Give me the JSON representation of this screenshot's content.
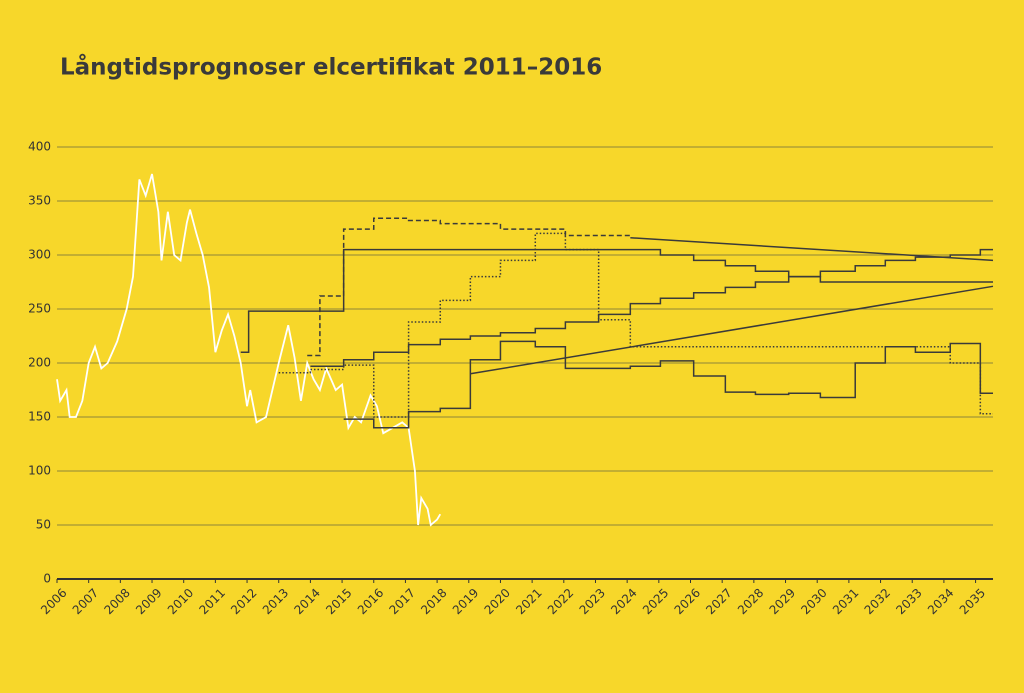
{
  "chart_data": {
    "type": "line",
    "title": "Långtidsprognoser elcertifikat 2011–2016",
    "xlim": [
      2006,
      2035.55
    ],
    "xticks": [
      2006,
      2007,
      2008,
      2009,
      2010,
      2011,
      2012,
      2013,
      2014,
      2015,
      2016,
      2017,
      2018,
      2019,
      2020,
      2021,
      2022,
      2023,
      2024,
      2025,
      2026,
      2027,
      2028,
      2029,
      2030,
      2031,
      2032,
      2033,
      2034,
      2035
    ],
    "ylim": [
      0,
      400
    ],
    "yticks": [
      0,
      50,
      100,
      150,
      200,
      250,
      300,
      350,
      400
    ],
    "grid": true,
    "background": "#f7d72a",
    "series": [
      {
        "color": "#ffffff",
        "dash": "solid",
        "step": false,
        "x": [
          2006.0,
          2006.1,
          2006.3,
          2006.4,
          2006.6,
          2006.8,
          2007.0,
          2007.2,
          2007.4,
          2007.6,
          2007.9,
          2008.2,
          2008.4,
          2008.6,
          2008.8,
          2009.0,
          2009.2,
          2009.3,
          2009.5,
          2009.7,
          2009.9,
          2010.1,
          2010.2,
          2010.4,
          2010.6,
          2010.8,
          2011.0,
          2011.2,
          2011.4,
          2011.6,
          2011.8,
          2012.0,
          2012.1,
          2012.3,
          2012.6,
          2012.8,
          2013.0,
          2013.3,
          2013.5,
          2013.7,
          2013.9,
          2014.1,
          2014.3,
          2014.5,
          2014.8,
          2015.0,
          2015.2,
          2015.4,
          2015.6,
          2015.9,
          2016.1,
          2016.3,
          2016.6,
          2016.9,
          2017.1,
          2017.3,
          2017.4,
          2017.5,
          2017.7,
          2017.8,
          2018.0,
          2018.1
        ],
        "values": [
          185,
          165,
          175,
          150,
          150,
          165,
          200,
          215,
          195,
          200,
          220,
          250,
          280,
          370,
          355,
          375,
          340,
          295,
          340,
          300,
          295,
          330,
          342,
          320,
          300,
          270,
          210,
          230,
          245,
          225,
          200,
          160,
          175,
          145,
          150,
          175,
          200,
          235,
          205,
          165,
          200,
          185,
          175,
          195,
          175,
          180,
          140,
          150,
          145,
          170,
          160,
          135,
          140,
          145,
          140,
          100,
          50,
          75,
          65,
          50,
          55,
          60
        ]
      },
      {
        "color": "#3a3a3a",
        "dash": "solid",
        "step": true,
        "x": [
          2011.8,
          2012.05,
          2015.05,
          2025.05,
          2026.1,
          2027.1,
          2028.05,
          2029.1,
          2030.1,
          2035.55
        ],
        "values": [
          210,
          248,
          305,
          300,
          295,
          290,
          285,
          280,
          275,
          275
        ]
      },
      {
        "color": "#3a3a3a",
        "dash": "dashed",
        "step": true,
        "x": [
          2013.9,
          2014.3,
          2015.05,
          2016.0,
          2017.1,
          2018.1,
          2020.0,
          2021.1,
          2022.05,
          2024.1
        ],
        "values": [
          207,
          262,
          324,
          334,
          332,
          329,
          324,
          324,
          318,
          316
        ]
      },
      {
        "color": "#3a3a3a",
        "dash": "solid",
        "step": false,
        "x": [
          2024.1,
          2035.55
        ],
        "values": [
          316,
          295
        ]
      },
      {
        "color": "#3a3a3a",
        "dash": "dotted",
        "step": true,
        "x": [
          2013.0,
          2014.0,
          2015.05,
          2016.0,
          2017.1,
          2018.1,
          2019.05,
          2020.0,
          2021.1,
          2022.05,
          2023.1,
          2024.1,
          2034.2,
          2035.15,
          2035.55
        ],
        "values": [
          191,
          194,
          198,
          150,
          238,
          258,
          280,
          295,
          320,
          305,
          240,
          215,
          200,
          153,
          153
        ]
      },
      {
        "color": "#3a3a3a",
        "dash": "solid",
        "step": true,
        "x": [
          2014.0,
          2015.05,
          2016.0,
          2017.1,
          2018.1,
          2019.05,
          2020.0,
          2021.1,
          2022.05,
          2023.1,
          2024.1,
          2025.05,
          2026.1,
          2027.1,
          2028.05,
          2029.1,
          2030.1,
          2031.2,
          2032.15,
          2033.1,
          2034.2,
          2035.15,
          2035.55
        ],
        "values": [
          197,
          203,
          210,
          217,
          222,
          225,
          228,
          232,
          238,
          245,
          255,
          260,
          265,
          270,
          275,
          280,
          285,
          290,
          295,
          298,
          300,
          305,
          305
        ]
      },
      {
        "color": "#3a3a3a",
        "dash": "solid",
        "step": true,
        "x": [
          2015.05,
          2016.0,
          2017.1,
          2018.1,
          2019.05,
          2020.0,
          2021.1,
          2022.05,
          2024.1,
          2025.05,
          2026.1,
          2027.1,
          2028.05,
          2029.1,
          2030.1,
          2031.2,
          2032.15,
          2033.1,
          2034.2,
          2035.15,
          2035.55
        ],
        "values": [
          148,
          140,
          155,
          158,
          203,
          220,
          215,
          195,
          197,
          202,
          188,
          173,
          171,
          172,
          168,
          200,
          215,
          210,
          218,
          172,
          172
        ]
      },
      {
        "color": "#3a3a3a",
        "dash": "solid",
        "step": false,
        "x": [
          2019.05,
          2035.55
        ],
        "values": [
          190,
          271
        ]
      }
    ]
  }
}
